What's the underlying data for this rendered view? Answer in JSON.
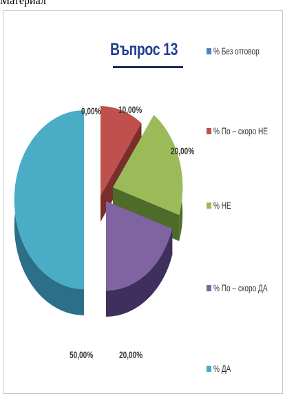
{
  "caption": "Материал",
  "chart_data": {
    "type": "pie",
    "title": "Въпрос 13",
    "legend_position": "right",
    "categories": [
      "% Без отговор",
      "% По – скоро НЕ",
      "% НЕ",
      "% По – скоро ДА",
      "% ДА"
    ],
    "values": [
      0,
      10,
      20,
      20,
      50
    ],
    "data_labels": [
      "0,00%",
      "10,00%",
      "20,00%",
      "20,00%",
      "50,00%"
    ],
    "colors": [
      "#4f81bd",
      "#c0504d",
      "#9bbb59",
      "#8064a2",
      "#4bacc6"
    ],
    "dark_colors": [
      "#2c4d75",
      "#7a2e2c",
      "#4f6b29",
      "#3f2f5c",
      "#2b7088"
    ],
    "view": "3d-exploded"
  }
}
